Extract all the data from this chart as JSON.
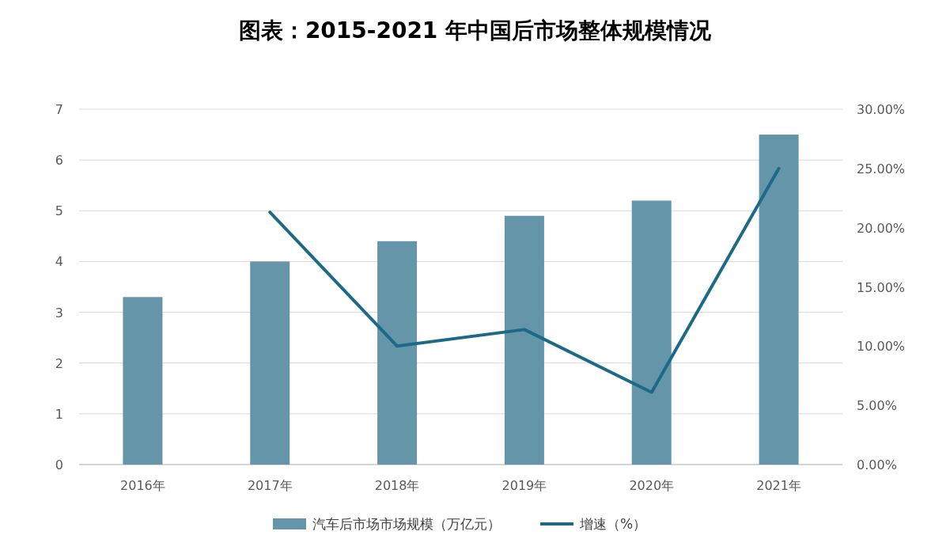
{
  "chart_data": {
    "type": "bar",
    "title": "图表：2015-2021 年中国后市场整体规模情况",
    "categories": [
      "2016年",
      "2017年",
      "2018年",
      "2019年",
      "2020年",
      "2021年"
    ],
    "series": [
      {
        "name": "汽车后市场市场规模（万亿元）",
        "color": "#6495a9",
        "values": [
          3.3,
          4.0,
          4.4,
          4.9,
          5.2,
          6.5
        ]
      },
      {
        "name": "增速（%）",
        "type": "line",
        "axis": "y2",
        "color": "#1d6a88",
        "values": [
          null,
          21.3,
          10.0,
          11.4,
          6.1,
          25.0
        ]
      }
    ],
    "ylim": [
      0,
      7
    ],
    "yticks": [
      0,
      1,
      2,
      3,
      4,
      5,
      6,
      7
    ],
    "y2lim": [
      0,
      30
    ],
    "y2ticks": [
      {
        "value": 0,
        "label": "0.00%"
      },
      {
        "value": 5,
        "label": "5.00%"
      },
      {
        "value": 10,
        "label": "10.00%"
      },
      {
        "value": 15,
        "label": "15.00%"
      },
      {
        "value": 20,
        "label": "20.00%"
      },
      {
        "value": 25,
        "label": "25.00%"
      },
      {
        "value": 30,
        "label": "30.00%"
      }
    ],
    "grid": "y",
    "legend": "bottom"
  }
}
